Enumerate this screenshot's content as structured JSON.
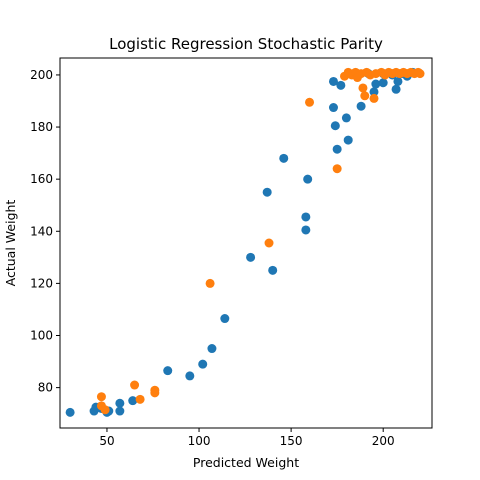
{
  "chart_data": {
    "type": "scatter",
    "title": "Logistic Regression Stochastic Parity",
    "xlabel": "Predicted Weight",
    "ylabel": "Actual Weight",
    "xlim": [
      24.5,
      226.5
    ],
    "ylim": [
      64.5,
      206.5
    ],
    "xticks": [
      50,
      100,
      150,
      200
    ],
    "yticks": [
      80,
      100,
      120,
      140,
      160,
      180,
      200
    ],
    "grid": false,
    "series": [
      {
        "color": "#1f77b4",
        "points": [
          [
            30,
            70.5
          ],
          [
            43,
            71
          ],
          [
            44,
            72.5
          ],
          [
            47,
            72
          ],
          [
            50,
            70.5
          ],
          [
            51,
            71
          ],
          [
            57,
            74
          ],
          [
            57,
            71
          ],
          [
            64,
            75
          ],
          [
            83,
            86.5
          ],
          [
            95,
            84.5
          ],
          [
            102,
            89
          ],
          [
            107,
            95
          ],
          [
            114,
            106.5
          ],
          [
            128,
            130
          ],
          [
            137,
            155
          ],
          [
            140,
            125
          ],
          [
            146,
            168
          ],
          [
            158,
            145.5
          ],
          [
            158,
            140.5
          ],
          [
            159,
            160
          ],
          [
            173,
            197.5
          ],
          [
            173,
            187.5
          ],
          [
            174,
            180.5
          ],
          [
            175,
            171.5
          ],
          [
            177,
            196
          ],
          [
            180,
            183.5
          ],
          [
            181,
            175
          ],
          [
            188,
            188
          ],
          [
            192,
            200.5
          ],
          [
            195,
            193.5
          ],
          [
            196,
            196.5
          ],
          [
            200,
            197
          ],
          [
            200,
            200.5
          ],
          [
            205,
            200
          ],
          [
            207,
            194.5
          ],
          [
            208,
            197.5
          ],
          [
            210,
            200.5
          ],
          [
            213,
            199.5
          ],
          [
            216,
            201
          ]
        ]
      },
      {
        "color": "#ff7f0e",
        "points": [
          [
            47,
            76.5
          ],
          [
            47,
            73
          ],
          [
            49,
            71.5
          ],
          [
            65,
            81
          ],
          [
            68,
            75.5
          ],
          [
            76,
            79
          ],
          [
            76,
            78
          ],
          [
            106,
            120
          ],
          [
            138,
            135.5
          ],
          [
            160,
            189.5
          ],
          [
            175,
            164
          ],
          [
            179,
            199.5
          ],
          [
            181,
            201
          ],
          [
            183,
            200
          ],
          [
            185,
            201
          ],
          [
            186,
            199
          ],
          [
            188,
            200.5
          ],
          [
            189,
            195
          ],
          [
            190,
            192
          ],
          [
            191,
            201
          ],
          [
            193,
            200
          ],
          [
            195,
            191
          ],
          [
            196,
            200.5
          ],
          [
            199,
            201
          ],
          [
            201,
            200
          ],
          [
            203,
            201
          ],
          [
            205,
            200.5
          ],
          [
            207,
            201
          ],
          [
            209,
            200.5
          ],
          [
            211,
            201
          ],
          [
            213,
            200.5
          ],
          [
            215,
            201
          ],
          [
            217,
            200.5
          ],
          [
            219,
            201
          ],
          [
            220,
            200.5
          ]
        ]
      }
    ]
  }
}
